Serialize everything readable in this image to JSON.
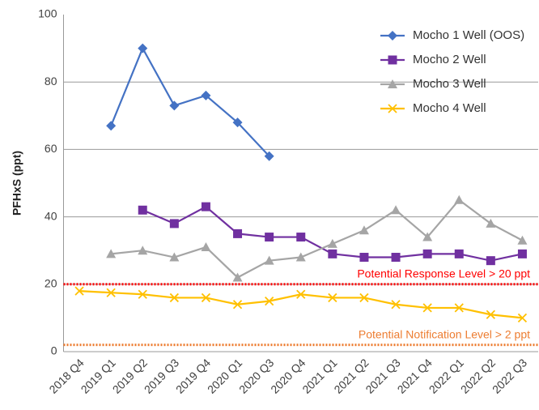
{
  "chart_data": {
    "type": "line",
    "y_label": "PFHxS (ppt)",
    "categories": [
      "2018 Q4",
      "2019 Q1",
      "2019 Q2",
      "2019 Q3",
      "2019 Q4",
      "2020 Q1",
      "2020 Q3",
      "2020 Q4",
      "2021 Q1",
      "2021 Q2",
      "2021 Q3",
      "2021 Q4",
      "2022 Q1",
      "2022 Q2",
      "2022 Q3"
    ],
    "series": [
      {
        "name": "Mocho 1 Well (OOS)",
        "color": "#4472c4",
        "marker": "diamond",
        "values": [
          null,
          67,
          90,
          73,
          76,
          68,
          58,
          null,
          null,
          null,
          null,
          null,
          null,
          null,
          null
        ]
      },
      {
        "name": "Mocho 2 Well",
        "color": "#7030a0",
        "marker": "square",
        "values": [
          null,
          null,
          42,
          38,
          43,
          35,
          34,
          34,
          29,
          28,
          28,
          29,
          29,
          27,
          29
        ]
      },
      {
        "name": "Mocho 3 Well",
        "color": "#a5a5a5",
        "marker": "triangle",
        "values": [
          null,
          29,
          30,
          28,
          31,
          22,
          27,
          28,
          32,
          36,
          42,
          34,
          45,
          38,
          33
        ]
      },
      {
        "name": "Mocho 4 Well",
        "color": "#ffc000",
        "marker": "x",
        "values": [
          18,
          17.5,
          17,
          16,
          16,
          14,
          15,
          17,
          16,
          16,
          14,
          13,
          13,
          11,
          10
        ]
      }
    ],
    "reference_lines": [
      {
        "value": 20,
        "label": "Potential Response Level > 20 ppt",
        "color": "#ff0000"
      },
      {
        "value": 2,
        "label": "Potential Notification Level > 2 ppt",
        "color": "#ed7d31"
      }
    ],
    "ylim": [
      0,
      100
    ],
    "yticks": [
      0,
      20,
      40,
      60,
      80,
      100
    ],
    "grid": true,
    "legend": "upper right"
  }
}
